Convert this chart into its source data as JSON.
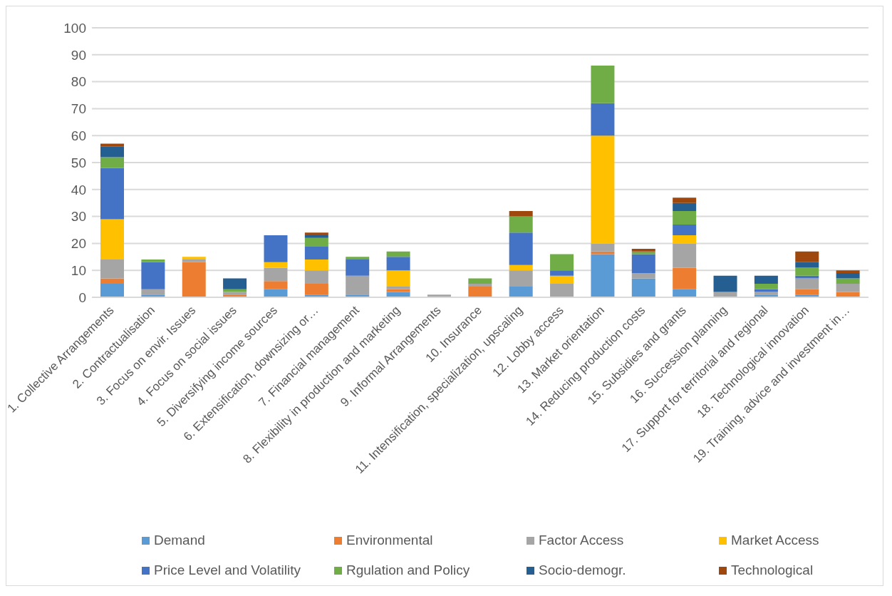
{
  "chart_data": {
    "type": "bar",
    "stacked": true,
    "categories": [
      "1. Collective Arrangements",
      "2. Contractualisation",
      "3. Focus on envir. Issues",
      "4. Focus on social issues",
      "5. Diversifying income sources",
      "6. Extensification, downsizing or…",
      "7. Financial management",
      "8. Flexibility in production and marketing",
      "9. Informal Arrangements",
      "10. Insurance",
      "11. Intensification, specialization, upscaling",
      "12. Lobby access",
      "13. Market orientation",
      "14. Reducing production costs",
      "15. Subsidies and grants",
      "16. Succession planning",
      "17. Support for territorial and regional",
      "18. Technological innovation",
      "19. Training, advice and investment in…"
    ],
    "series": [
      {
        "name": "Demand",
        "color": "#5b9bd5",
        "values": [
          5,
          1,
          0,
          0,
          3,
          1,
          1,
          2,
          0,
          0,
          4,
          0,
          16,
          7,
          3,
          0,
          1,
          1,
          0
        ]
      },
      {
        "name": "Environmental",
        "color": "#ed7d31",
        "values": [
          2,
          0,
          13,
          1,
          3,
          4,
          0,
          1,
          0,
          4,
          0,
          0,
          1,
          0,
          8,
          0,
          0,
          2,
          2
        ]
      },
      {
        "name": "Factor Access",
        "color": "#a5a5a5",
        "values": [
          7,
          2,
          1,
          1,
          5,
          5,
          7,
          1,
          1,
          1,
          6,
          5,
          3,
          2,
          9,
          2,
          1,
          4,
          3
        ]
      },
      {
        "name": "Market Access",
        "color": "#ffc000",
        "values": [
          15,
          0,
          1,
          0,
          2,
          4,
          0,
          6,
          0,
          0,
          2,
          3,
          40,
          0,
          3,
          0,
          0,
          0,
          0
        ]
      },
      {
        "name": "Price Level and Volatility",
        "color": "#4472c4",
        "values": [
          19,
          10,
          0,
          0,
          10,
          5,
          6,
          5,
          0,
          0,
          12,
          2,
          12,
          7,
          4,
          0,
          1,
          1,
          0
        ]
      },
      {
        "name": "Rgulation and Policy",
        "color": "#70ad47",
        "values": [
          4,
          1,
          0,
          1,
          0,
          3,
          1,
          2,
          0,
          2,
          6,
          6,
          14,
          1,
          5,
          0,
          2,
          3,
          2
        ]
      },
      {
        "name": "Socio-demogr.",
        "color": "#255e91",
        "values": [
          4,
          0,
          0,
          4,
          0,
          1,
          0,
          0,
          0,
          0,
          0,
          0,
          0,
          0,
          3,
          6,
          3,
          2,
          2
        ]
      },
      {
        "name": "Technological",
        "color": "#9e480e",
        "values": [
          1,
          0,
          0,
          0,
          0,
          1,
          0,
          0,
          0,
          0,
          2,
          0,
          0,
          1,
          2,
          0,
          0,
          4,
          1
        ]
      }
    ],
    "ylim": [
      0,
      100
    ],
    "yticks": [
      0,
      10,
      20,
      30,
      40,
      50,
      60,
      70,
      80,
      90,
      100
    ],
    "grid": "y",
    "legend": "bottom"
  }
}
